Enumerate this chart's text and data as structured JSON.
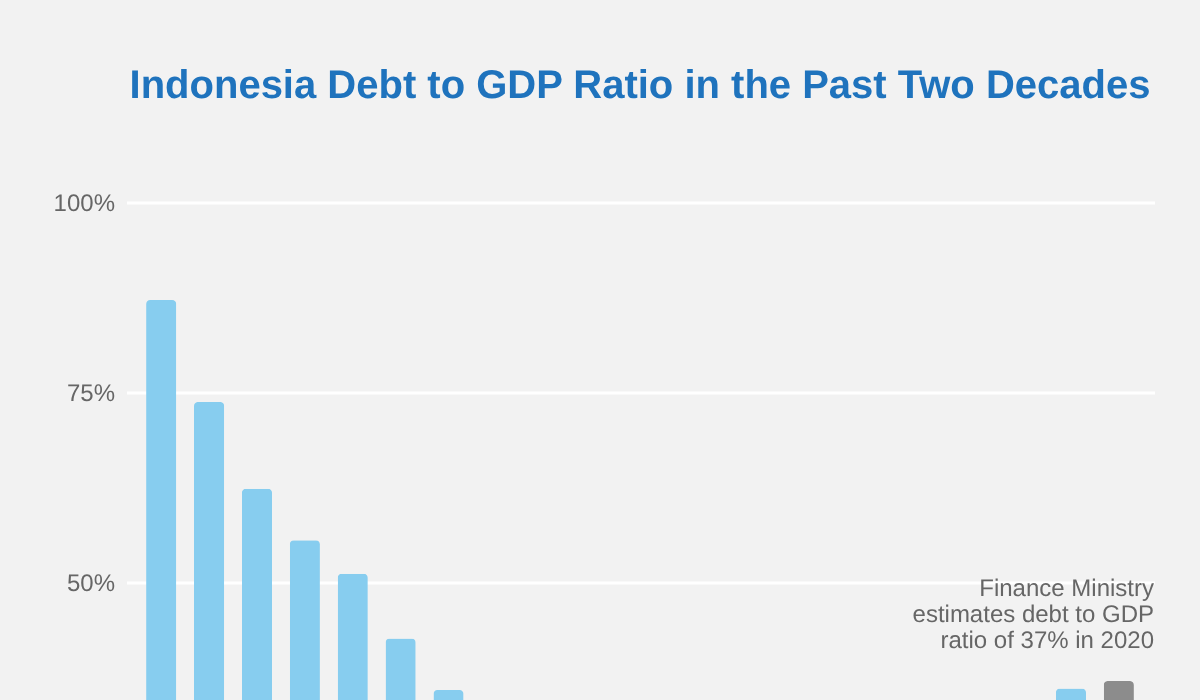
{
  "chart_data": {
    "type": "bar",
    "title": "Indonesia Debt to GDP Ratio in the Past Two Decades",
    "categories": [
      null,
      null,
      null,
      null,
      null,
      null,
      null,
      null,
      null,
      null,
      null,
      null,
      null,
      null,
      null,
      null,
      null,
      null,
      null,
      null,
      null
    ],
    "values": [
      87.1,
      73.7,
      62.3,
      55.5,
      51.1,
      42.6,
      35.8,
      null,
      null,
      null,
      null,
      null,
      null,
      null,
      null,
      null,
      null,
      null,
      null,
      36,
      37
    ],
    "colors": [
      "#87cdef",
      "#87cdef",
      "#87cdef",
      "#87cdef",
      "#87cdef",
      "#87cdef",
      "#87cdef",
      "#87cdef",
      "#87cdef",
      "#87cdef",
      "#87cdef",
      "#87cdef",
      "#87cdef",
      "#87cdef",
      "#87cdef",
      "#87cdef",
      "#87cdef",
      "#87cdef",
      "#87cdef",
      "#87cdef",
      "#8c8c8c"
    ],
    "ylim": [
      34.5,
      100
    ],
    "yticks": [
      {
        "value": 50,
        "label": "50%"
      },
      {
        "value": 75,
        "label": "75%"
      },
      {
        "value": 100,
        "label": "100%"
      }
    ],
    "grid": "y",
    "annotations": [
      "Finance Ministry estimates debt to GDP ratio of 37% in 2020"
    ]
  }
}
